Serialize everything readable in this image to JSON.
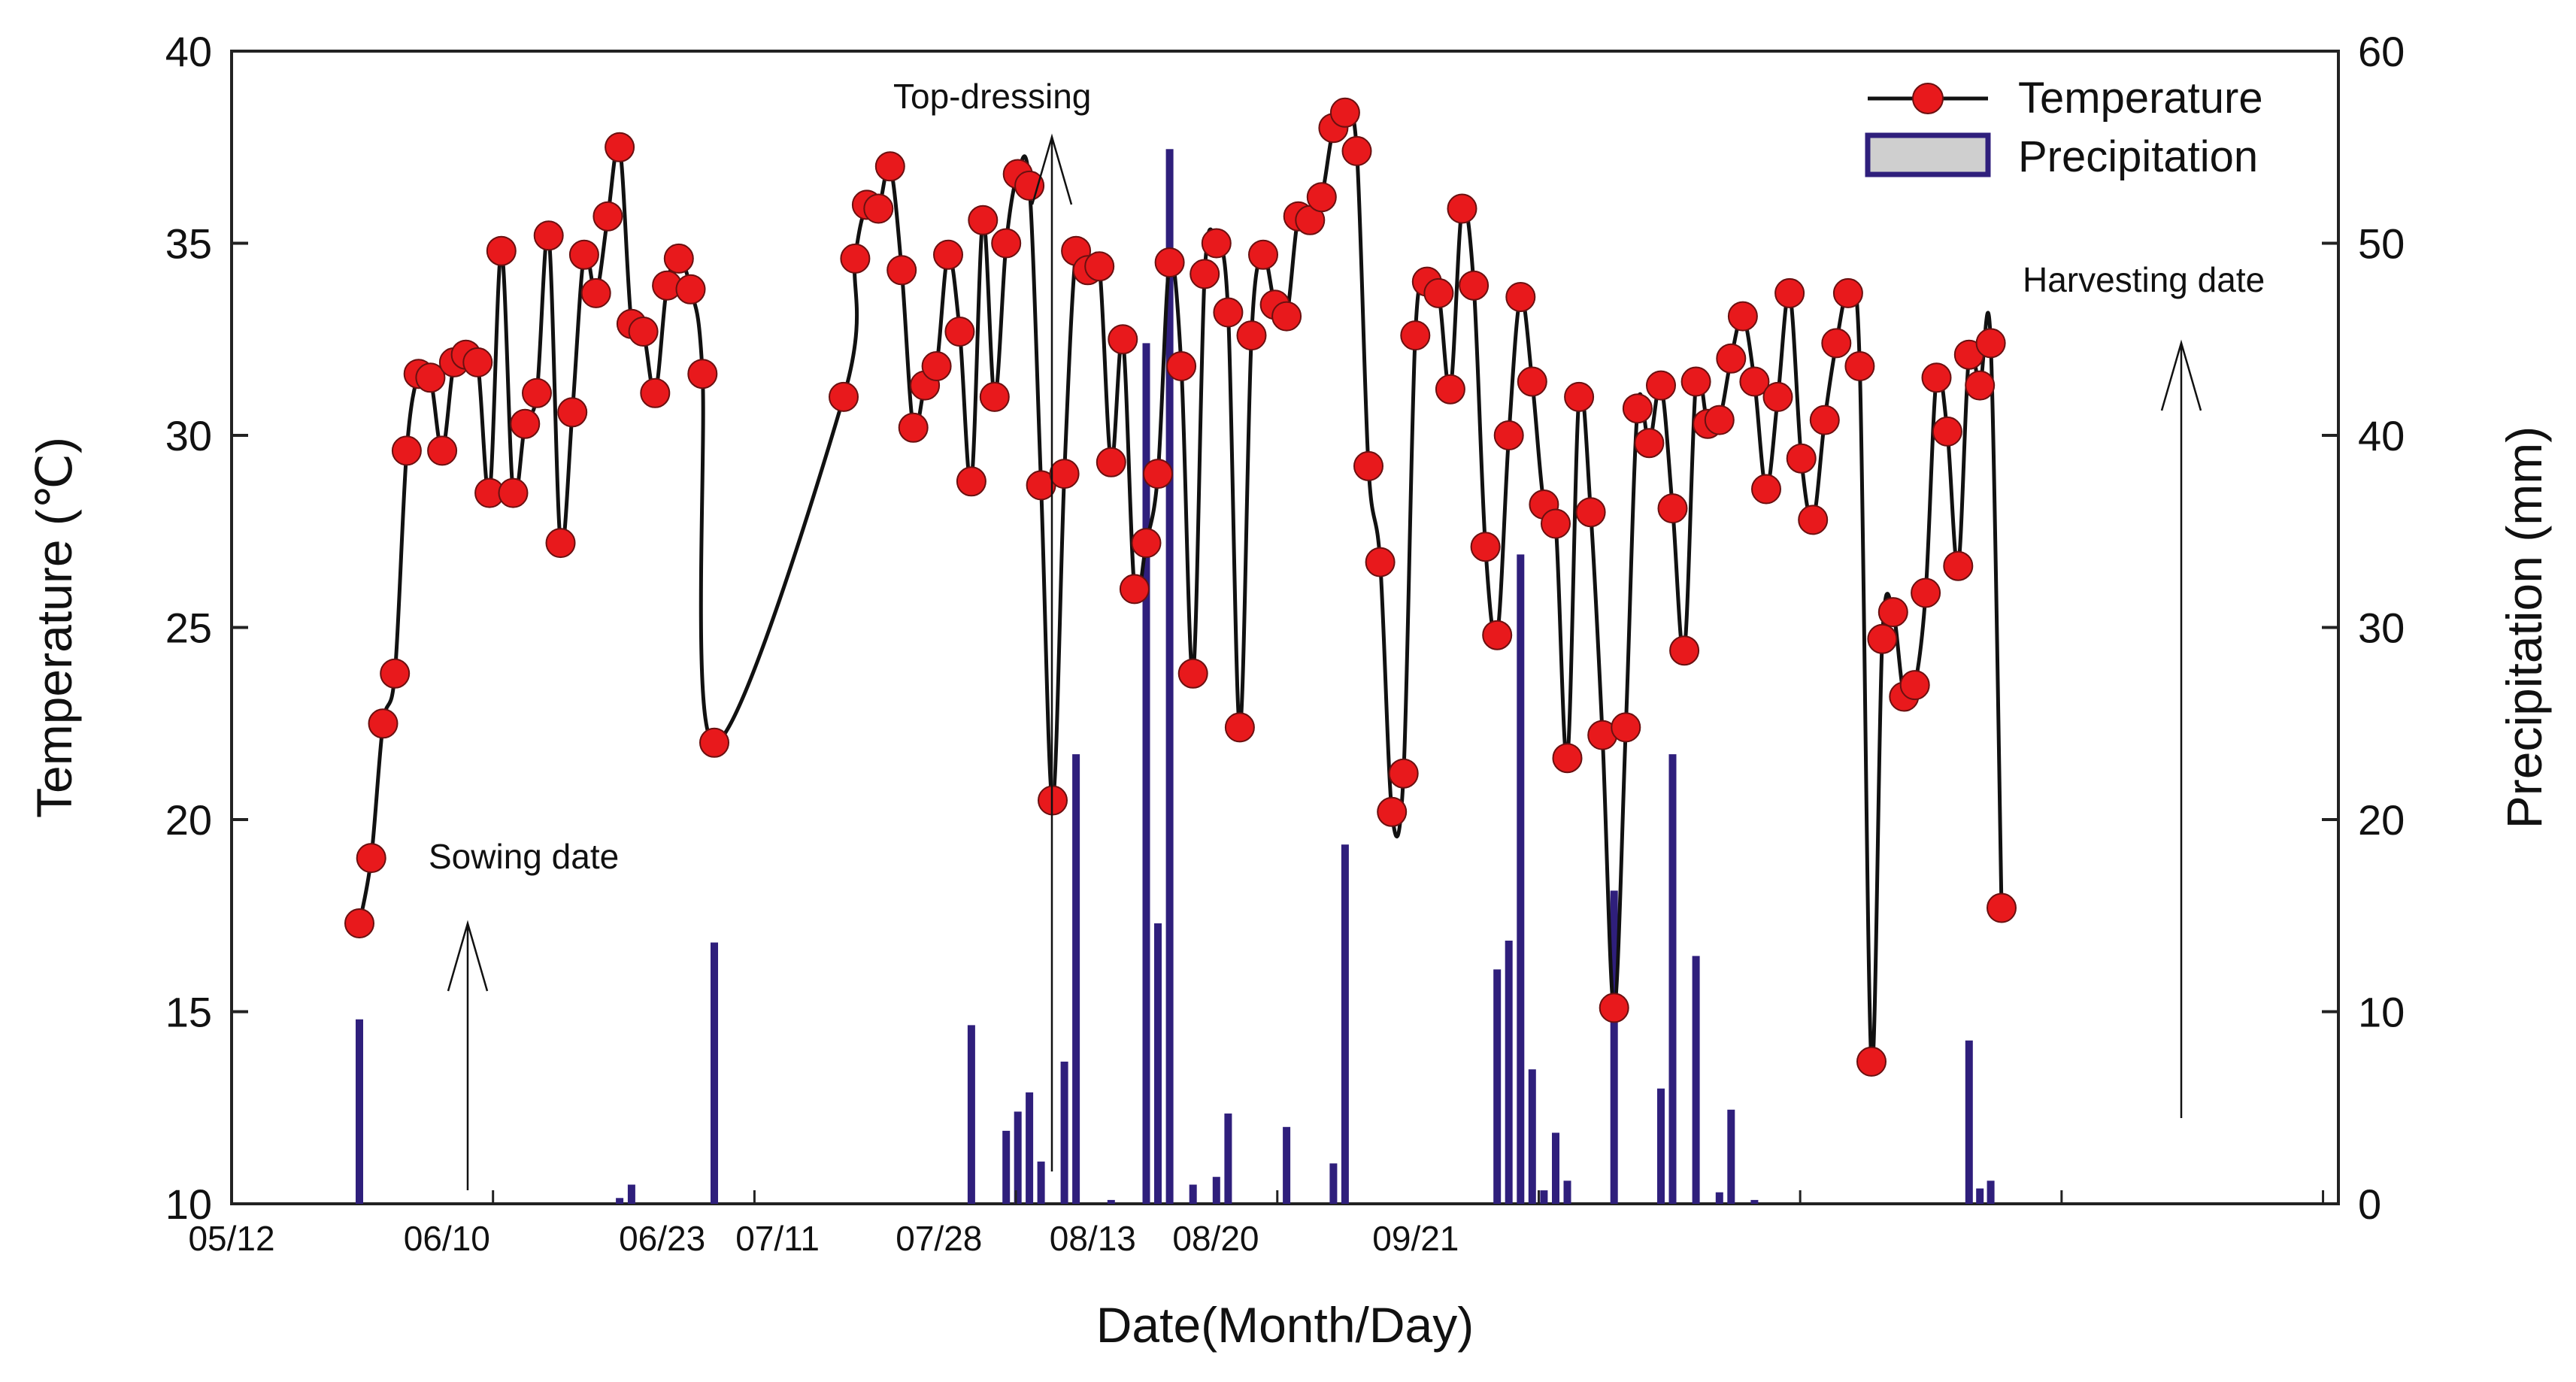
{
  "chart_data": {
    "type": "line+bar",
    "title": "",
    "xlabel": "Date(Month/Day)",
    "ylabel_left": "Temperature (℃)",
    "ylabel_right": "Precipitation (mm)",
    "ylim_left": [
      10,
      40
    ],
    "ylim_right": [
      0,
      60
    ],
    "yticks_left": [
      "10",
      "15",
      "20",
      "25",
      "30",
      "35",
      "40"
    ],
    "yticks_right": [
      "0",
      "10",
      "20",
      "30",
      "40",
      "50",
      "60"
    ],
    "xlim": [
      0,
      137
    ],
    "xticks": [
      {
        "x": 0,
        "label": "05/12"
      },
      {
        "x": 14,
        "label": "06/10"
      },
      {
        "x": 28,
        "label": "06/23"
      },
      {
        "x": 35.5,
        "label": "07/11"
      },
      {
        "x": 46,
        "label": "07/28"
      },
      {
        "x": 56,
        "label": "08/13"
      },
      {
        "x": 64,
        "label": "08/20"
      },
      {
        "x": 77,
        "label": "09/21"
      }
    ],
    "legend": {
      "position": "top-right",
      "items": [
        "Temperature",
        "Precipitation"
      ]
    },
    "series": [
      {
        "name": "Temperature",
        "type": "line",
        "color": "#e8191c",
        "line_color": "#111111",
        "points": [
          [
            1,
            17.3
          ],
          [
            2,
            19.0
          ],
          [
            3,
            22.5
          ],
          [
            4,
            23.8
          ],
          [
            5,
            29.6
          ],
          [
            6,
            31.6
          ],
          [
            7,
            31.5
          ],
          [
            8,
            29.6
          ],
          [
            9,
            31.9
          ],
          [
            10,
            32.1
          ],
          [
            11,
            31.9
          ],
          [
            12,
            28.5
          ],
          [
            13,
            34.8
          ],
          [
            14,
            28.5
          ],
          [
            15,
            30.3
          ],
          [
            16,
            31.1
          ],
          [
            17,
            35.2
          ],
          [
            18,
            27.2
          ],
          [
            19,
            30.6
          ],
          [
            20,
            34.7
          ],
          [
            21,
            33.7
          ],
          [
            22,
            35.7
          ],
          [
            23,
            37.5
          ],
          [
            24,
            32.9
          ],
          [
            25,
            32.7
          ],
          [
            26,
            31.1
          ],
          [
            27,
            33.9
          ],
          [
            28,
            34.6
          ],
          [
            29,
            33.8
          ],
          [
            30,
            31.6
          ],
          [
            31,
            22.0
          ],
          [
            43,
            31.0
          ],
          [
            44,
            34.6
          ],
          [
            45,
            36.0
          ],
          [
            46,
            35.9
          ],
          [
            47,
            37.0
          ],
          [
            48,
            34.3
          ],
          [
            49,
            30.2
          ],
          [
            50,
            31.3
          ],
          [
            51,
            31.8
          ],
          [
            52,
            34.7
          ],
          [
            53,
            32.7
          ],
          [
            54,
            28.8
          ],
          [
            55,
            35.6
          ],
          [
            56,
            31.0
          ],
          [
            57,
            35.0
          ],
          [
            58,
            36.8
          ],
          [
            59,
            36.5
          ],
          [
            60,
            28.7
          ],
          [
            61,
            20.5
          ],
          [
            62,
            29.0
          ],
          [
            63,
            34.8
          ],
          [
            64,
            34.3
          ],
          [
            65,
            34.4
          ],
          [
            66,
            29.3
          ],
          [
            67,
            32.5
          ],
          [
            68,
            26.0
          ],
          [
            69,
            27.2
          ],
          [
            70,
            29.0
          ],
          [
            71,
            34.5
          ],
          [
            72,
            31.8
          ],
          [
            73,
            23.8
          ],
          [
            74,
            34.2
          ],
          [
            75,
            35.0
          ],
          [
            76,
            33.2
          ],
          [
            77,
            22.4
          ],
          [
            78,
            32.6
          ],
          [
            79,
            34.7
          ],
          [
            80,
            33.4
          ],
          [
            81,
            33.1
          ],
          [
            82,
            35.7
          ],
          [
            83,
            35.6
          ],
          [
            84,
            36.2
          ],
          [
            85,
            38.0
          ],
          [
            86,
            38.4
          ],
          [
            87,
            37.4
          ],
          [
            88,
            29.2
          ],
          [
            89,
            26.7
          ],
          [
            90,
            20.2
          ],
          [
            91,
            21.2
          ],
          [
            92,
            32.6
          ],
          [
            93,
            34.0
          ],
          [
            94,
            33.7
          ],
          [
            95,
            31.2
          ],
          [
            96,
            35.9
          ],
          [
            97,
            33.9
          ],
          [
            98,
            27.1
          ],
          [
            99,
            24.8
          ],
          [
            100,
            30.0
          ],
          [
            101,
            33.6
          ],
          [
            102,
            31.4
          ],
          [
            103,
            28.2
          ],
          [
            104,
            27.7
          ],
          [
            105,
            21.6
          ],
          [
            106,
            31.0
          ],
          [
            107,
            28.0
          ],
          [
            108,
            22.2
          ],
          [
            109,
            15.1
          ],
          [
            110,
            22.4
          ],
          [
            111,
            30.7
          ],
          [
            112,
            29.8
          ],
          [
            113,
            31.3
          ],
          [
            114,
            28.1
          ],
          [
            115,
            24.4
          ],
          [
            116,
            31.4
          ],
          [
            117,
            30.3
          ],
          [
            118,
            30.4
          ],
          [
            119,
            32.0
          ],
          [
            120,
            33.1
          ],
          [
            121,
            31.4
          ],
          [
            122,
            28.6
          ],
          [
            123,
            31.0
          ],
          [
            124,
            33.7
          ],
          [
            125,
            29.4
          ],
          [
            126,
            27.8
          ],
          [
            127,
            30.4
          ],
          [
            128,
            32.4
          ],
          [
            129,
            33.7
          ],
          [
            130,
            31.8
          ],
          [
            131,
            13.7
          ],
          [
            132,
            24.7
          ],
          [
            133,
            25.4
          ],
          [
            134,
            23.2
          ],
          [
            135,
            23.5
          ],
          [
            136,
            25.9
          ],
          [
            137,
            31.5
          ],
          [
            138,
            30.1
          ],
          [
            139,
            26.6
          ],
          [
            140,
            32.1
          ],
          [
            141,
            31.3
          ],
          [
            142,
            32.4
          ],
          [
            143,
            17.7
          ]
        ]
      },
      {
        "name": "Precipitation",
        "type": "bar",
        "axis": "right",
        "color": "#2f1f7c",
        "bars": [
          [
            1,
            9.6
          ],
          [
            23,
            0.3
          ],
          [
            24,
            1.0
          ],
          [
            31,
            13.6
          ],
          [
            54,
            9.3
          ],
          [
            57,
            3.8
          ],
          [
            58,
            4.8
          ],
          [
            59,
            5.8
          ],
          [
            60,
            2.2
          ],
          [
            62,
            7.4
          ],
          [
            63,
            23.4
          ],
          [
            66,
            0.2
          ],
          [
            69,
            44.8
          ],
          [
            70,
            14.6
          ],
          [
            71,
            54.9
          ],
          [
            73,
            1.0
          ],
          [
            75,
            1.4
          ],
          [
            76,
            4.7
          ],
          [
            81,
            4.0
          ],
          [
            85,
            2.1
          ],
          [
            86,
            18.7
          ],
          [
            99,
            12.2
          ],
          [
            100,
            13.7
          ],
          [
            101,
            33.8
          ],
          [
            102,
            7.0
          ],
          [
            103,
            0.7
          ],
          [
            104,
            3.7
          ],
          [
            105,
            1.2
          ],
          [
            109,
            16.3
          ],
          [
            113,
            6.0
          ],
          [
            114,
            23.4
          ],
          [
            116,
            12.9
          ],
          [
            118,
            0.6
          ],
          [
            119,
            4.9
          ],
          [
            121,
            0.2
          ],
          [
            140,
            8.5
          ],
          [
            141,
            0.8
          ],
          [
            142,
            1.2
          ]
        ]
      }
    ],
    "annotations": [
      {
        "text": "Sowing date",
        "x": 5
      },
      {
        "text": "Top-dressing",
        "x": 37
      },
      {
        "text": "Harvesting date",
        "x": 150
      }
    ]
  }
}
